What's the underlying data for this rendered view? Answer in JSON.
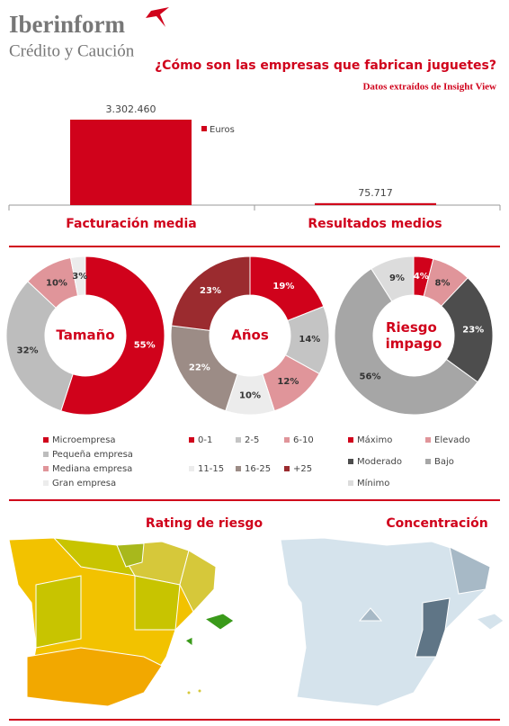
{
  "header": {
    "brand": "Iberinform",
    "tagline": "Crédito y Caución",
    "title": "¿Cómo son las empresas que fabrican juguetes?",
    "source": "Datos extraídos de Insight View"
  },
  "chart_data": [
    {
      "type": "bar",
      "categories": [
        "Facturación media",
        "Resultados medios"
      ],
      "series": [
        {
          "name": "Euros",
          "color": "#d0021b",
          "values": [
            3302460,
            75717
          ],
          "value_labels": [
            "3.302.460",
            "75.717"
          ]
        }
      ]
    },
    {
      "type": "pie",
      "title": "Tamaño",
      "categories": [
        "Microempresa",
        "Pequeña empresa",
        "Mediana empresa",
        "Gran empresa"
      ],
      "values": [
        55,
        32,
        10,
        3
      ],
      "value_labels": [
        "55%",
        "32%",
        "10%",
        "3%"
      ],
      "colors": [
        "#d0021b",
        "#bdbdbd",
        "#e0959a",
        "#ececec"
      ]
    },
    {
      "type": "pie",
      "title": "Años",
      "categories": [
        "0-1",
        "2-5",
        "6-10",
        "11-15",
        "16-25",
        "+25"
      ],
      "values": [
        19,
        14,
        12,
        10,
        22,
        23
      ],
      "value_labels": [
        "19%",
        "14%",
        "12%",
        "10%",
        "22%",
        "23%"
      ],
      "colors": [
        "#d0021b",
        "#c4c4c4",
        "#e0959a",
        "#ececec",
        "#9c8c86",
        "#9b2b2f"
      ]
    },
    {
      "type": "pie",
      "title": "Riesgo impago",
      "categories": [
        "Máximo",
        "Elevado",
        "Moderado",
        "Bajo",
        "Mínimo"
      ],
      "values": [
        4,
        8,
        23,
        56,
        9
      ],
      "value_labels": [
        "4%",
        "8%",
        "23%",
        "56%",
        "9%"
      ],
      "colors": [
        "#d0021b",
        "#e0959a",
        "#4d4d4d",
        "#a6a6a6",
        "#dcdcdc"
      ]
    }
  ],
  "maps": {
    "rating": "Rating de riesgo",
    "concentration": "Concentración"
  }
}
